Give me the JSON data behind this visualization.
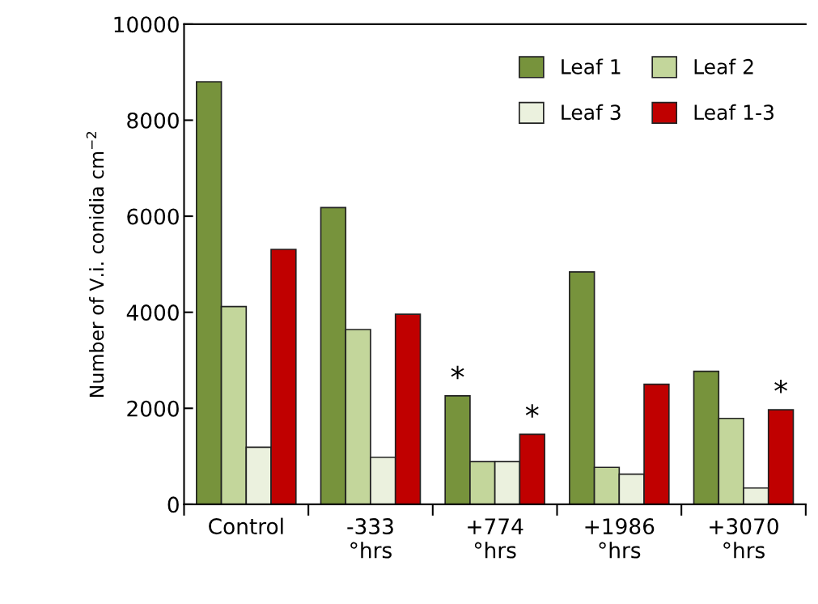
{
  "chart_data": {
    "type": "bar",
    "ylabel": "Number of V.i. conidia cm$^{−2}$",
    "categories": [
      "Control",
      "-333\n°hrs",
      "+774\n°hrs",
      "+1986\n°hrs",
      "+3070\n°hrs"
    ],
    "series": [
      {
        "name": "Leaf 1",
        "color": "#77933c",
        "values": [
          8800,
          6180,
          2260,
          4840,
          2770
        ],
        "value_labels": [
          null,
          null,
          "*",
          null,
          null
        ]
      },
      {
        "name": "Leaf 2",
        "color": "#c3d69b",
        "values": [
          4120,
          3640,
          890,
          770,
          1790
        ]
      },
      {
        "name": "Leaf 3",
        "color": "#ebf1de",
        "values": [
          1190,
          980,
          890,
          630,
          340
        ]
      },
      {
        "name": "Leaf 1-3",
        "color": "#c00000",
        "values": [
          5310,
          3960,
          1460,
          2500,
          1970
        ],
        "value_labels": [
          null,
          null,
          "*",
          null,
          "*"
        ]
      }
    ],
    "ylim": [
      0,
      10000
    ],
    "yticks": [
      0,
      2000,
      4000,
      6000,
      8000,
      10000
    ],
    "legend": "top right",
    "grid": false
  }
}
